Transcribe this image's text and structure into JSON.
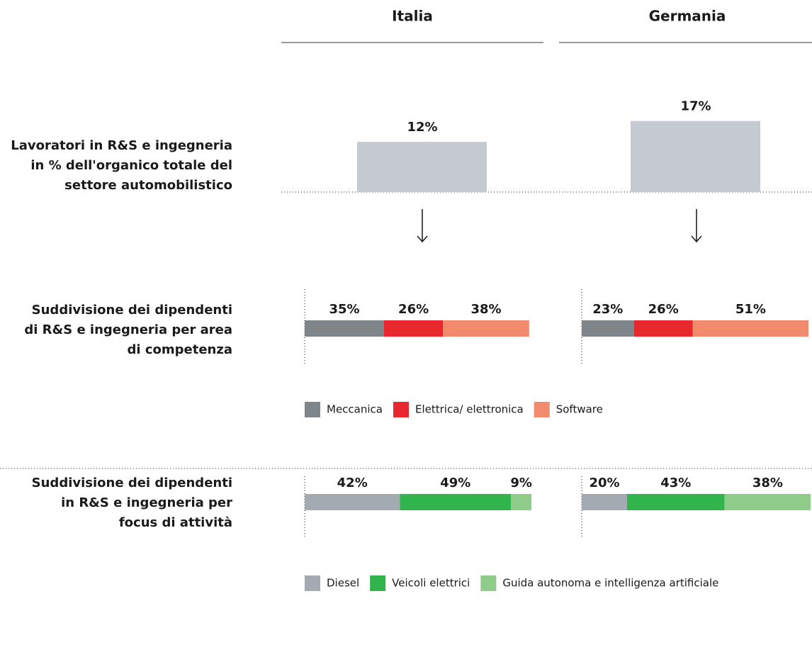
{
  "chart_data": [
    {
      "type": "bar",
      "categories": [
        "Italia",
        "Germania"
      ],
      "label": [
        "Lavoratori in R&S e ingegneria",
        "in % dell'organico totale del",
        "settore automobilistico"
      ],
      "values": [
        12,
        17
      ],
      "value_labels": [
        "12%",
        "17%"
      ],
      "color": "#c5cad1"
    },
    {
      "type": "stacked",
      "label": [
        "Suddivisione dei dipendenti",
        "di R&S e ingegneria per area",
        "di competenza"
      ],
      "series": [
        {
          "name": "Meccanica",
          "color": "#7e858b",
          "values": [
            35,
            23
          ],
          "value_labels": [
            "35%",
            "23%"
          ]
        },
        {
          "name": "Elettrica/ elettronica",
          "color": "#e8282e",
          "values": [
            26,
            26
          ],
          "value_labels": [
            "26%",
            "26%"
          ]
        },
        {
          "name": "Software",
          "color": "#f28a6e",
          "values": [
            38,
            51
          ],
          "value_labels": [
            "38%",
            "51%"
          ]
        }
      ]
    },
    {
      "type": "stacked",
      "label": [
        "Suddivisione dei dipendenti",
        "in R&S e ingegneria per",
        "focus di attività"
      ],
      "series": [
        {
          "name": "Diesel",
          "color": "#a3aab2",
          "values": [
            42,
            20
          ],
          "value_labels": [
            "42%",
            "20%"
          ]
        },
        {
          "name": "Veicoli elettrici",
          "color": "#31b44b",
          "values": [
            49,
            43
          ],
          "value_labels": [
            "49%",
            "43%"
          ]
        },
        {
          "name": "Guida autonoma e intelligenza artificiale",
          "color": "#8fcc8a",
          "values": [
            9,
            38
          ],
          "value_labels": [
            "9%",
            "38%"
          ]
        }
      ]
    }
  ]
}
